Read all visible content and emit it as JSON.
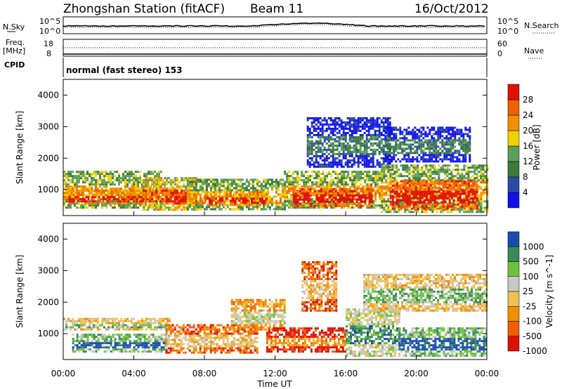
{
  "header": {
    "station": "Zhongshan Station (fitACF)",
    "beam": "Beam 11",
    "date": "16/Oct/2012"
  },
  "summary": {
    "nsky_label": "N.Sky",
    "nsearch_label": "N.Search",
    "power_ticks_left": [
      "10^5",
      "10^0"
    ],
    "power_ticks_right": [
      "10^5",
      "10^0"
    ],
    "freq_label_1": "Freq.",
    "freq_label_2": "[MHz]",
    "freq_ticks": [
      "18",
      "8"
    ],
    "nave_label": "Nave",
    "nave_ticks": [
      "60",
      "0"
    ],
    "cpid_label": "CPID",
    "cpid_value": "normal (fast stereo) 153"
  },
  "colors": {
    "power_scale": [
      "#1010ee",
      "#2a4aa8",
      "#3a7a3a",
      "#5aa05a",
      "#f0d000",
      "#f09000",
      "#f06000",
      "#e01000"
    ],
    "velocity_scale": [
      "#e01000",
      "#f06000",
      "#f09000",
      "#f0c050",
      "#c8c8c8",
      "#70c040",
      "#3a8a5a",
      "#1a4ab0"
    ]
  },
  "chart_data": [
    {
      "type": "heatmap",
      "panel": "power",
      "ylabel": "Slant Range [km]",
      "xlabel": "",
      "colorbar_label": "Power [dB]",
      "colorbar_ticks": [
        "4",
        "8",
        "12",
        "16",
        "20",
        "24",
        "28"
      ],
      "yticks": [
        "1000",
        "2000",
        "3000",
        "4000"
      ],
      "ylim": [
        180,
        4500
      ],
      "xlim": [
        0,
        24
      ],
      "blobs": [
        {
          "t0": 0.0,
          "t1": 5.5,
          "r0": 400,
          "r1": 1600,
          "level": 4
        },
        {
          "t0": 0.3,
          "t1": 5.0,
          "r0": 550,
          "r1": 1000,
          "level": 6
        },
        {
          "t0": 4.5,
          "t1": 7.6,
          "r0": 350,
          "r1": 1400,
          "level": 5
        },
        {
          "t0": 5.8,
          "t1": 7.0,
          "r0": 550,
          "r1": 1000,
          "level": 7
        },
        {
          "t0": 7.0,
          "t1": 12.5,
          "r0": 350,
          "r1": 1350,
          "level": 4
        },
        {
          "t0": 8.0,
          "t1": 11.5,
          "r0": 500,
          "r1": 950,
          "level": 6
        },
        {
          "t0": 12.5,
          "t1": 18.0,
          "r0": 400,
          "r1": 1600,
          "level": 4
        },
        {
          "t0": 13.0,
          "t1": 17.5,
          "r0": 500,
          "r1": 1050,
          "level": 7
        },
        {
          "t0": 13.8,
          "t1": 18.5,
          "r0": 1700,
          "r1": 3300,
          "level": 1
        },
        {
          "t0": 18.0,
          "t1": 24.0,
          "r0": 300,
          "r1": 1800,
          "level": 4
        },
        {
          "t0": 18.5,
          "t1": 23.5,
          "r0": 400,
          "r1": 1300,
          "level": 7
        },
        {
          "t0": 18.2,
          "t1": 23.0,
          "r0": 1900,
          "r1": 3000,
          "level": 1
        }
      ]
    },
    {
      "type": "heatmap",
      "panel": "velocity",
      "ylabel": "Slant Range [km]",
      "xlabel": "Time UT",
      "colorbar_label": "Velocity [m s^-1]",
      "colorbar_ticks": [
        "1000",
        "500",
        "100",
        "25",
        "-25",
        "-100",
        "-500",
        "-1000"
      ],
      "yticks": [
        "1000",
        "2000",
        "3000",
        "4000"
      ],
      "xticks": [
        "00:00",
        "04:00",
        "08:00",
        "12:00",
        "16:00",
        "20:00",
        "00:00"
      ],
      "ylim": [
        180,
        4500
      ],
      "xlim": [
        0,
        24
      ],
      "blobs": [
        {
          "t0": 0.0,
          "t1": 6.0,
          "r0": 1100,
          "r1": 1500,
          "level": 4
        },
        {
          "t0": 0.5,
          "t1": 5.8,
          "r0": 400,
          "r1": 1000,
          "level": 6
        },
        {
          "t0": 5.8,
          "t1": 11.0,
          "r0": 400,
          "r1": 1300,
          "level": 2
        },
        {
          "t0": 9.5,
          "t1": 12.5,
          "r0": 1100,
          "r1": 2100,
          "level": 3
        },
        {
          "t0": 11.5,
          "t1": 16.0,
          "r0": 400,
          "r1": 1200,
          "level": 1
        },
        {
          "t0": 13.5,
          "t1": 15.5,
          "r0": 1700,
          "r1": 3300,
          "level": 2
        },
        {
          "t0": 16.0,
          "t1": 19.0,
          "r0": 300,
          "r1": 1800,
          "level": 5
        },
        {
          "t0": 17.0,
          "t1": 24.0,
          "r0": 1700,
          "r1": 2900,
          "level": 4
        },
        {
          "t0": 19.0,
          "t1": 24.0,
          "r0": 300,
          "r1": 1200,
          "level": 6
        }
      ]
    }
  ]
}
